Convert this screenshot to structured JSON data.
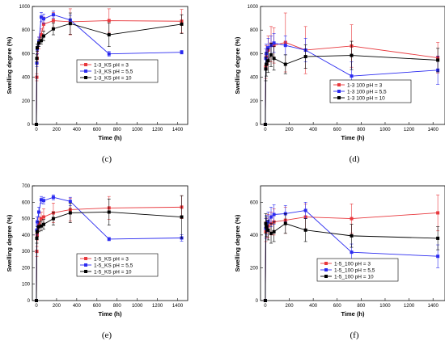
{
  "chart_data": [
    {
      "type": "line",
      "panel_label": "(c)",
      "xlabel": "Time (h)",
      "ylabel": "Swelling degree (%)",
      "xlim": [
        -40,
        1500
      ],
      "ylim": [
        0,
        1000
      ],
      "xticks": [
        0,
        200,
        400,
        600,
        800,
        1000,
        1200,
        1400
      ],
      "yticks": [
        0,
        200,
        400,
        600,
        800,
        1000
      ],
      "legend_position": "center-right",
      "series": [
        {
          "name": "1-3_KS pH = 3",
          "color": "#e8383d",
          "marker": "square",
          "points": [
            {
              "x": 0,
              "y": 0,
              "err": 0
            },
            {
              "x": 4,
              "y": 400,
              "err": 30
            },
            {
              "x": 8,
              "y": 560,
              "err": 40
            },
            {
              "x": 24,
              "y": 690,
              "err": 50
            },
            {
              "x": 48,
              "y": 760,
              "err": 50
            },
            {
              "x": 72,
              "y": 850,
              "err": 60
            },
            {
              "x": 168,
              "y": 880,
              "err": 70
            },
            {
              "x": 336,
              "y": 870,
              "err": 110
            },
            {
              "x": 720,
              "y": 880,
              "err": 100
            },
            {
              "x": 1440,
              "y": 875,
              "err": 100
            }
          ]
        },
        {
          "name": "1-3_KS pH = 5,5",
          "color": "#2b2bf0",
          "marker": "square",
          "points": [
            {
              "x": 0,
              "y": 0,
              "err": 0
            },
            {
              "x": 4,
              "y": 520,
              "err": 30
            },
            {
              "x": 8,
              "y": 640,
              "err": 40
            },
            {
              "x": 24,
              "y": 700,
              "err": 40
            },
            {
              "x": 48,
              "y": 910,
              "err": 40
            },
            {
              "x": 72,
              "y": 895,
              "err": 40
            },
            {
              "x": 168,
              "y": 930,
              "err": 30
            },
            {
              "x": 336,
              "y": 885,
              "err": 40
            },
            {
              "x": 720,
              "y": 598,
              "err": 20
            },
            {
              "x": 1440,
              "y": 612,
              "err": 15
            }
          ]
        },
        {
          "name": "1-3_KS pH = 10",
          "color": "#000000",
          "marker": "square",
          "points": [
            {
              "x": 0,
              "y": 0,
              "err": 0
            },
            {
              "x": 4,
              "y": 560,
              "err": 30
            },
            {
              "x": 8,
              "y": 650,
              "err": 30
            },
            {
              "x": 24,
              "y": 690,
              "err": 30
            },
            {
              "x": 48,
              "y": 710,
              "err": 30
            },
            {
              "x": 72,
              "y": 750,
              "err": 40
            },
            {
              "x": 168,
              "y": 810,
              "err": 50
            },
            {
              "x": 336,
              "y": 855,
              "err": 90
            },
            {
              "x": 720,
              "y": 760,
              "err": 100
            },
            {
              "x": 1440,
              "y": 850,
              "err": 80
            }
          ]
        }
      ]
    },
    {
      "type": "line",
      "panel_label": "(d)",
      "xlabel": "Time (h)",
      "ylabel": "Swelling degree (%)",
      "xlim": [
        -40,
        1500
      ],
      "ylim": [
        0,
        1000
      ],
      "xticks": [
        0,
        200,
        400,
        600,
        800,
        1000,
        1200,
        1400
      ],
      "yticks": [
        0,
        200,
        400,
        600,
        800,
        1000
      ],
      "legend_position": "bottom-right",
      "series": [
        {
          "name": "1-3 100 pH = 3",
          "color": "#e8383d",
          "marker": "square",
          "points": [
            {
              "x": 0,
              "y": 0,
              "err": 0
            },
            {
              "x": 4,
              "y": 490,
              "err": 100
            },
            {
              "x": 8,
              "y": 570,
              "err": 100
            },
            {
              "x": 24,
              "y": 630,
              "err": 120
            },
            {
              "x": 48,
              "y": 680,
              "err": 150
            },
            {
              "x": 72,
              "y": 670,
              "err": 150
            },
            {
              "x": 168,
              "y": 695,
              "err": 250
            },
            {
              "x": 336,
              "y": 630,
              "err": 200
            },
            {
              "x": 720,
              "y": 665,
              "err": 180
            },
            {
              "x": 1440,
              "y": 565,
              "err": 130
            }
          ]
        },
        {
          "name": "1-3 100 pH = 5,5",
          "color": "#2b2bf0",
          "marker": "square",
          "points": [
            {
              "x": 0,
              "y": 0,
              "err": 0
            },
            {
              "x": 4,
              "y": 560,
              "err": 80
            },
            {
              "x": 8,
              "y": 600,
              "err": 80
            },
            {
              "x": 24,
              "y": 650,
              "err": 80
            },
            {
              "x": 48,
              "y": 670,
              "err": 80
            },
            {
              "x": 72,
              "y": 690,
              "err": 80
            },
            {
              "x": 168,
              "y": 670,
              "err": 80
            },
            {
              "x": 336,
              "y": 630,
              "err": 100
            },
            {
              "x": 720,
              "y": 410,
              "err": 120
            },
            {
              "x": 1440,
              "y": 460,
              "err": 120
            }
          ]
        },
        {
          "name": "1-3 100 pH = 10",
          "color": "#000000",
          "marker": "square",
          "points": [
            {
              "x": 0,
              "y": 0,
              "err": 0
            },
            {
              "x": 4,
              "y": 470,
              "err": 100
            },
            {
              "x": 8,
              "y": 510,
              "err": 100
            },
            {
              "x": 24,
              "y": 540,
              "err": 100
            },
            {
              "x": 48,
              "y": 590,
              "err": 100
            },
            {
              "x": 72,
              "y": 560,
              "err": 100
            },
            {
              "x": 168,
              "y": 510,
              "err": 80
            },
            {
              "x": 336,
              "y": 575,
              "err": 100
            },
            {
              "x": 720,
              "y": 585,
              "err": 120
            },
            {
              "x": 1440,
              "y": 545,
              "err": 100
            }
          ]
        }
      ]
    },
    {
      "type": "line",
      "panel_label": "(e)",
      "xlabel": "Time (h)",
      "ylabel": "Swelling degree (%)",
      "xlim": [
        -40,
        1500
      ],
      "ylim": [
        0,
        700
      ],
      "xticks": [
        0,
        200,
        400,
        600,
        800,
        1000,
        1200,
        1400
      ],
      "yticks": [
        0,
        100,
        200,
        300,
        400,
        500,
        600,
        700
      ],
      "legend_position": "bottom-right",
      "series": [
        {
          "name": "1-5_KS pH = 3",
          "color": "#e8383d",
          "marker": "square",
          "points": [
            {
              "x": 0,
              "y": 0,
              "err": 0
            },
            {
              "x": 4,
              "y": 300,
              "err": 30
            },
            {
              "x": 8,
              "y": 400,
              "err": 30
            },
            {
              "x": 24,
              "y": 470,
              "err": 40
            },
            {
              "x": 48,
              "y": 500,
              "err": 40
            },
            {
              "x": 72,
              "y": 510,
              "err": 50
            },
            {
              "x": 168,
              "y": 535,
              "err": 60
            },
            {
              "x": 336,
              "y": 555,
              "err": 70
            },
            {
              "x": 720,
              "y": 565,
              "err": 70
            },
            {
              "x": 1440,
              "y": 570,
              "err": 70
            }
          ]
        },
        {
          "name": "1-5_KS pH = 5,5",
          "color": "#2b2bf0",
          "marker": "square",
          "points": [
            {
              "x": 0,
              "y": 0,
              "err": 0
            },
            {
              "x": 4,
              "y": 430,
              "err": 30
            },
            {
              "x": 8,
              "y": 480,
              "err": 30
            },
            {
              "x": 24,
              "y": 540,
              "err": 30
            },
            {
              "x": 48,
              "y": 615,
              "err": 20
            },
            {
              "x": 72,
              "y": 610,
              "err": 20
            },
            {
              "x": 168,
              "y": 630,
              "err": 15
            },
            {
              "x": 336,
              "y": 605,
              "err": 25
            },
            {
              "x": 720,
              "y": 375,
              "err": 10
            },
            {
              "x": 1440,
              "y": 382,
              "err": 20
            }
          ]
        },
        {
          "name": "1-5_KS pH = 10",
          "color": "#000000",
          "marker": "square",
          "points": [
            {
              "x": 0,
              "y": 0,
              "err": 0
            },
            {
              "x": 4,
              "y": 380,
              "err": 30
            },
            {
              "x": 8,
              "y": 420,
              "err": 30
            },
            {
              "x": 24,
              "y": 450,
              "err": 30
            },
            {
              "x": 48,
              "y": 455,
              "err": 30
            },
            {
              "x": 72,
              "y": 465,
              "err": 30
            },
            {
              "x": 168,
              "y": 500,
              "err": 40
            },
            {
              "x": 336,
              "y": 535,
              "err": 60
            },
            {
              "x": 720,
              "y": 540,
              "err": 80
            },
            {
              "x": 1440,
              "y": 510,
              "err": 130
            }
          ]
        }
      ]
    },
    {
      "type": "line",
      "panel_label": "(f)",
      "xlabel": "Time (h)",
      "ylabel": "Swelling degree (%)",
      "xlim": [
        -40,
        1500
      ],
      "ylim": [
        0,
        700
      ],
      "xticks": [
        0,
        200,
        400,
        600,
        800,
        1000,
        1200,
        1400
      ],
      "yticks": [
        0,
        200,
        400,
        600
      ],
      "legend_position": "bottom-right",
      "series": [
        {
          "name": "1-5_100 pH = 3",
          "color": "#e8383d",
          "marker": "square",
          "points": [
            {
              "x": 0,
              "y": 0,
              "err": 0
            },
            {
              "x": 4,
              "y": 420,
              "err": 60
            },
            {
              "x": 8,
              "y": 440,
              "err": 60
            },
            {
              "x": 24,
              "y": 455,
              "err": 70
            },
            {
              "x": 48,
              "y": 470,
              "err": 70
            },
            {
              "x": 72,
              "y": 480,
              "err": 80
            },
            {
              "x": 168,
              "y": 490,
              "err": 80
            },
            {
              "x": 336,
              "y": 510,
              "err": 80
            },
            {
              "x": 720,
              "y": 500,
              "err": 90
            },
            {
              "x": 1440,
              "y": 535,
              "err": 110
            }
          ]
        },
        {
          "name": "1-5_100 pH = 5,5",
          "color": "#2b2bf0",
          "marker": "square",
          "points": [
            {
              "x": 0,
              "y": 0,
              "err": 0
            },
            {
              "x": 4,
              "y": 440,
              "err": 60
            },
            {
              "x": 8,
              "y": 460,
              "err": 60
            },
            {
              "x": 24,
              "y": 480,
              "err": 60
            },
            {
              "x": 48,
              "y": 510,
              "err": 60
            },
            {
              "x": 72,
              "y": 525,
              "err": 60
            },
            {
              "x": 168,
              "y": 530,
              "err": 50
            },
            {
              "x": 336,
              "y": 550,
              "err": 50
            },
            {
              "x": 720,
              "y": 295,
              "err": 50
            },
            {
              "x": 1440,
              "y": 270,
              "err": 70
            }
          ]
        },
        {
          "name": "1-5_100 pH = 10",
          "color": "#000000",
          "marker": "square",
          "points": [
            {
              "x": 0,
              "y": 0,
              "err": 0
            },
            {
              "x": 4,
              "y": 470,
              "err": 60
            },
            {
              "x": 8,
              "y": 450,
              "err": 60
            },
            {
              "x": 24,
              "y": 430,
              "err": 60
            },
            {
              "x": 48,
              "y": 410,
              "err": 60
            },
            {
              "x": 72,
              "y": 420,
              "err": 60
            },
            {
              "x": 168,
              "y": 470,
              "err": 60
            },
            {
              "x": 336,
              "y": 430,
              "err": 70
            },
            {
              "x": 720,
              "y": 395,
              "err": 70
            },
            {
              "x": 1440,
              "y": 380,
              "err": 70
            }
          ]
        }
      ]
    }
  ]
}
